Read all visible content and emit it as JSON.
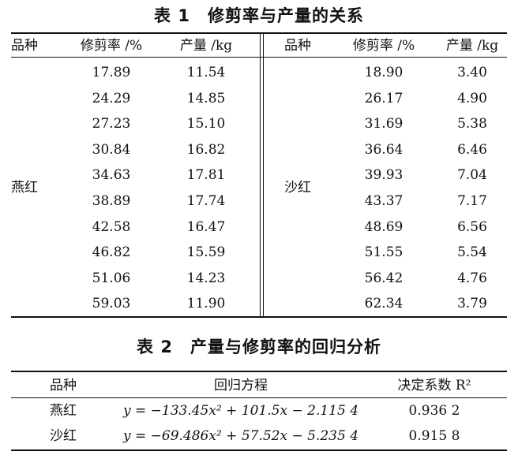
{
  "table1": {
    "title": "表 1　修剪率与产量的关系",
    "headers": [
      "品种",
      "修剪率 /%",
      "产量 /kg",
      "品种",
      "修剪率 /%",
      "产量 /kg"
    ],
    "groups": [
      {
        "variety": "燕红",
        "rows": [
          [
            "17.89",
            "11.54"
          ],
          [
            "24.29",
            "14.85"
          ],
          [
            "27.23",
            "15.10"
          ],
          [
            "30.84",
            "16.82"
          ],
          [
            "34.63",
            "17.81"
          ],
          [
            "38.89",
            "17.74"
          ],
          [
            "42.58",
            "16.47"
          ],
          [
            "46.82",
            "15.59"
          ],
          [
            "51.06",
            "14.23"
          ],
          [
            "59.03",
            "11.90"
          ]
        ]
      },
      {
        "variety": "沙红",
        "rows": [
          [
            "18.90",
            "3.40"
          ],
          [
            "26.17",
            "4.90"
          ],
          [
            "31.69",
            "5.38"
          ],
          [
            "36.64",
            "6.46"
          ],
          [
            "39.93",
            "7.04"
          ],
          [
            "43.37",
            "7.17"
          ],
          [
            "48.69",
            "6.56"
          ],
          [
            "51.55",
            "5.54"
          ],
          [
            "56.42",
            "4.76"
          ],
          [
            "62.34",
            "3.79"
          ]
        ]
      }
    ]
  },
  "table2": {
    "title": "表 2　产量与修剪率的回归分析",
    "headers": [
      "品种",
      "回归方程",
      "决定系数 R²"
    ],
    "rows": [
      [
        "燕红",
        "y = −133.45x² + 101.5x − 2.115 4",
        "0.936 2"
      ],
      [
        "沙红",
        "y = −69.486x² + 57.52x − 5.235 4",
        "0.915 8"
      ]
    ]
  }
}
